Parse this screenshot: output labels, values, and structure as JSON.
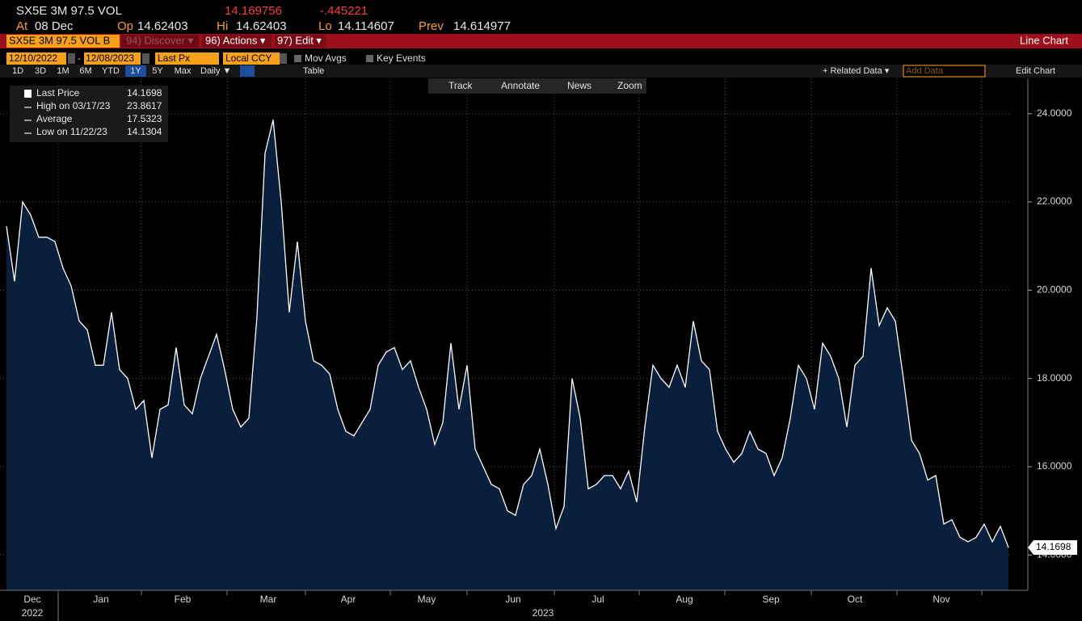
{
  "header": {
    "ticker": "SX5E 3M 97.5 VOL",
    "last": "14.169756",
    "change": "-.445221",
    "at_label": "At",
    "at": "08 Dec",
    "op_label": "Op",
    "op": "14.62403",
    "hi_label": "Hi",
    "hi": "14.62403",
    "lo_label": "Lo",
    "lo": "14.114607",
    "prev_label": "Prev",
    "prev": "14.614977"
  },
  "menu": {
    "security": "SX5E 3M 97.5 VOL B",
    "discover": "94) Discover ▾",
    "actions": "96) Actions ▾",
    "edit": "97) Edit ▾",
    "view": "Line Chart"
  },
  "controls": {
    "start": "12/10/2022",
    "dash": "-",
    "end": "12/08/2023",
    "field": "Last Px",
    "currency": "Local CCY",
    "mov_avgs": "Mov Avgs",
    "key_events": "Key Events",
    "ranges": [
      "1D",
      "3D",
      "1M",
      "6M",
      "YTD",
      "1Y",
      "5Y",
      "Max"
    ],
    "active_range": "1Y",
    "period": "Daily ▼",
    "table": "Table",
    "related": "+ Related Data ▾",
    "add_data": "Add Data",
    "edit_chart": "Edit Chart"
  },
  "toolbar": [
    "Track",
    "Annotate",
    "News",
    "Zoom"
  ],
  "chart_data": {
    "type": "area",
    "grid": true,
    "series": [
      {
        "name": "Last Price",
        "color": "#ffffff",
        "fill": "#0a1f3c",
        "values": [
          21.45,
          20.2,
          22.0,
          21.7,
          21.2,
          21.2,
          21.1,
          20.5,
          20.1,
          19.3,
          19.1,
          18.3,
          18.3,
          19.5,
          18.2,
          18.0,
          17.3,
          17.5,
          16.2,
          17.3,
          17.4,
          18.7,
          17.4,
          17.2,
          18.0,
          18.5,
          19.0,
          18.2,
          17.3,
          16.9,
          17.1,
          19.4,
          23.1,
          23.8617,
          22.0,
          19.5,
          21.1,
          19.3,
          18.4,
          18.3,
          18.1,
          17.3,
          16.8,
          16.7,
          17.0,
          17.3,
          18.3,
          18.6,
          18.7,
          18.2,
          18.4,
          17.8,
          17.3,
          16.5,
          17.0,
          18.8,
          17.3,
          18.3,
          16.4,
          16.0,
          15.6,
          15.5,
          15.0,
          14.9,
          15.6,
          15.8,
          16.4,
          15.6,
          14.6,
          15.1,
          18.0,
          17.1,
          15.5,
          15.6,
          15.8,
          15.8,
          15.5,
          15.9,
          15.2,
          16.9,
          18.3,
          18.0,
          17.8,
          18.3,
          17.8,
          19.3,
          18.4,
          18.2,
          16.8,
          16.4,
          16.1,
          16.3,
          16.8,
          16.4,
          16.3,
          15.8,
          16.2,
          17.1,
          18.3,
          18.0,
          17.3,
          18.8,
          18.5,
          18.0,
          16.9,
          18.3,
          18.5,
          20.5,
          19.2,
          19.6,
          19.3,
          18.0,
          16.6,
          16.3,
          15.7,
          15.8,
          14.7,
          14.8,
          14.4,
          14.3,
          14.4,
          14.7,
          14.3,
          14.65,
          14.1698
        ]
      }
    ],
    "legend": [
      {
        "label": "Last Price",
        "value": 14.1698
      },
      {
        "label": "High on 03/17/23",
        "value": 23.8617
      },
      {
        "label": "Average",
        "value": 17.5323
      },
      {
        "label": "Low on 11/22/23",
        "value": 14.1304
      }
    ],
    "ylim": [
      13.2,
      24.8
    ],
    "yticks": [
      {
        "value": 14,
        "label": "14.0000"
      },
      {
        "value": 16,
        "label": "16.0000"
      },
      {
        "value": 18,
        "label": "18.0000"
      },
      {
        "value": 20,
        "label": "20.0000"
      },
      {
        "value": 22,
        "label": "22.0000"
      },
      {
        "value": 24,
        "label": "24.0000"
      }
    ],
    "x_labels": [
      "Dec",
      "Jan",
      "Feb",
      "Mar",
      "Apr",
      "May",
      "Jun",
      "Jul",
      "Aug",
      "Sep",
      "Oct",
      "Nov"
    ],
    "years": [
      "2022",
      "2023"
    ]
  }
}
